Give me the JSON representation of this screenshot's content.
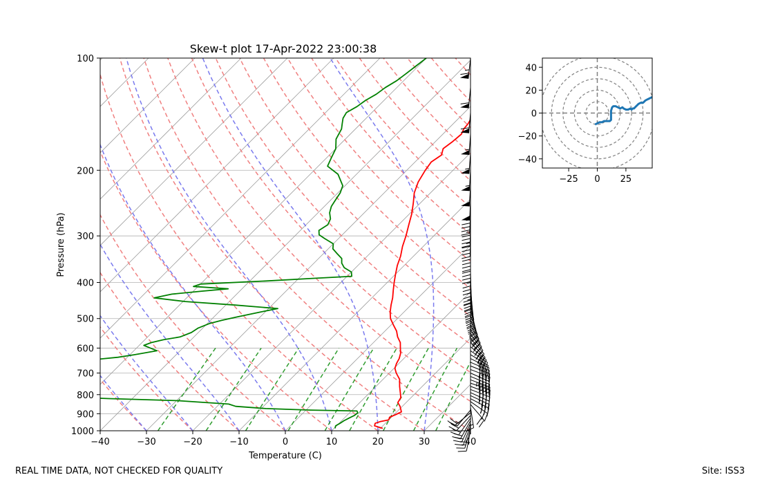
{
  "footer": {
    "left": "REAL TIME DATA, NOT CHECKED FOR QUALITY",
    "right": "Site: ISS3"
  },
  "chart_data": [
    {
      "type": "skew-t",
      "title": "Skew-t plot 17-Apr-2022 23:00:38",
      "xlabel": "Temperature (C)",
      "ylabel": "Pressure (hPa)",
      "xlim": [
        -40,
        40
      ],
      "ylim": [
        1000,
        100
      ],
      "y_scale": "log",
      "x_ticks": [
        -40,
        -30,
        -20,
        -10,
        0,
        10,
        20,
        30,
        40
      ],
      "x_tick_labels": [
        "−40",
        "−30",
        "−20",
        "−10",
        "0",
        "10",
        "20",
        "30",
        "40"
      ],
      "y_ticks": [
        100,
        200,
        300,
        400,
        500,
        600,
        700,
        800,
        900,
        1000
      ],
      "y_tick_labels": [
        "100",
        "200",
        "300",
        "400",
        "500",
        "600",
        "700",
        "800",
        "900",
        "1000"
      ],
      "grid": true,
      "series": [
        {
          "kind": "temperature",
          "color": "#ff0000",
          "points": [
            [
              20.5,
              985
            ],
            [
              18.2,
              970
            ],
            [
              17.8,
              955
            ],
            [
              18.5,
              945
            ],
            [
              20,
              935
            ],
            [
              19.6,
              920
            ],
            [
              20.4,
              905
            ],
            [
              21,
              890
            ],
            [
              19.5,
              860
            ],
            [
              18.2,
              840
            ],
            [
              17.8,
              815
            ],
            [
              16.6,
              790
            ],
            [
              15.1,
              760
            ],
            [
              13.6,
              728
            ],
            [
              11.5,
              700
            ],
            [
              10.2,
              680
            ],
            [
              9.5,
              660
            ],
            [
              9,
              640
            ],
            [
              8.2,
              620
            ],
            [
              7,
              600
            ],
            [
              5.8,
              580
            ],
            [
              4,
              560
            ],
            [
              2.5,
              540
            ],
            [
              0.5,
              520
            ],
            [
              -1.5,
              500
            ],
            [
              -3,
              480
            ],
            [
              -4.3,
              460
            ],
            [
              -5.5,
              440
            ],
            [
              -7,
              420
            ],
            [
              -8.5,
              400
            ],
            [
              -10,
              380
            ],
            [
              -11.5,
              360
            ],
            [
              -12.8,
              340
            ],
            [
              -14.5,
              320
            ],
            [
              -16,
              300
            ],
            [
              -17.8,
              280
            ],
            [
              -19.5,
              262
            ],
            [
              -21.5,
              245
            ],
            [
              -23.5,
              230
            ],
            [
              -25,
              215
            ],
            [
              -26,
              200
            ],
            [
              -26.5,
              190
            ],
            [
              -25.8,
              182
            ],
            [
              -26.8,
              175
            ],
            [
              -26.3,
              168
            ],
            [
              -26,
              160
            ],
            [
              -26.6,
              155
            ],
            [
              -26.8,
              150
            ],
            [
              -27.3,
              145
            ],
            [
              -28,
              140
            ],
            [
              -28.3,
              135
            ],
            [
              -28.6,
              130
            ],
            [
              -29.2,
              125
            ],
            [
              -29.5,
              120
            ],
            [
              -28.8,
              117
            ],
            [
              -29.8,
              114
            ],
            [
              -32.5,
              111
            ],
            [
              -33.6,
              108
            ],
            [
              -35,
              105
            ],
            [
              -36.5,
              102
            ],
            [
              -37,
              100
            ]
          ]
        },
        {
          "kind": "dewpoint",
          "color": "#008000",
          "points": [
            [
              10.2,
              985
            ],
            [
              9.8,
              970
            ],
            [
              10.2,
              955
            ],
            [
              10.5,
              940
            ],
            [
              11,
              925
            ],
            [
              11.6,
              910
            ],
            [
              11.8,
              895
            ],
            [
              11.2,
              885
            ],
            [
              1,
              880
            ],
            [
              -9,
              872
            ],
            [
              -16,
              860
            ],
            [
              -18,
              848
            ],
            [
              -30,
              830
            ],
            [
              -45,
              820
            ],
            [
              -51,
              815
            ],
            [
              -52,
              800
            ],
            [
              -52,
              785
            ],
            [
              -53,
              765
            ],
            [
              -54.5,
              745
            ],
            [
              -56.5,
              725
            ],
            [
              -58.5,
              700
            ],
            [
              -61,
              680
            ],
            [
              -64.5,
              665
            ],
            [
              -60,
              655
            ],
            [
              -57,
              645
            ],
            [
              -52,
              635
            ],
            [
              -49,
              625
            ],
            [
              -45,
              610
            ],
            [
              -47,
              600
            ],
            [
              -49,
              590
            ],
            [
              -48,
              580
            ],
            [
              -46,
              570
            ],
            [
              -43,
              560
            ],
            [
              -41.5,
              545
            ],
            [
              -41,
              530
            ],
            [
              -39.5,
              515
            ],
            [
              -37.5,
              505
            ],
            [
              -35,
              495
            ],
            [
              -31,
              480
            ],
            [
              -28,
              470
            ],
            [
              -38,
              460
            ],
            [
              -49.5,
              450
            ],
            [
              -57,
              440
            ],
            [
              -54,
              430
            ],
            [
              -48,
              422
            ],
            [
              -43,
              416
            ],
            [
              -51,
              410
            ],
            [
              -50,
              404
            ],
            [
              -36,
              396
            ],
            [
              -27,
              390
            ],
            [
              -19,
              385
            ],
            [
              -20,
              375
            ],
            [
              -22.5,
              365
            ],
            [
              -24,
              355
            ],
            [
              -25,
              345
            ],
            [
              -27,
              335
            ],
            [
              -29,
              325
            ],
            [
              -30,
              315
            ],
            [
              -33,
              305
            ],
            [
              -35,
              298
            ],
            [
              -36,
              290
            ],
            [
              -35.3,
              280
            ],
            [
              -36,
              270
            ],
            [
              -37.5,
              260
            ],
            [
              -38.5,
              250
            ],
            [
              -39,
              240
            ],
            [
              -39.5,
              230
            ],
            [
              -40.5,
              220
            ],
            [
              -44,
              205
            ],
            [
              -48,
              195
            ],
            [
              -49,
              185
            ],
            [
              -50,
              175
            ],
            [
              -52,
              165
            ],
            [
              -53,
              155
            ],
            [
              -54,
              150
            ],
            [
              -55,
              145
            ],
            [
              -55.5,
              140
            ],
            [
              -54.5,
              135
            ],
            [
              -54,
              130
            ],
            [
              -53,
              125
            ],
            [
              -52.5,
              120
            ],
            [
              -51.5,
              115
            ],
            [
              -51,
              110
            ],
            [
              -50.5,
              105
            ],
            [
              -50,
              100
            ]
          ]
        }
      ],
      "wind_barbs": [
        [
          2,
          10,
          1000
        ],
        [
          4,
          14,
          985
        ],
        [
          6,
          16,
          970
        ],
        [
          8,
          17,
          955
        ],
        [
          10,
          18,
          940
        ],
        [
          12,
          17,
          925
        ],
        [
          14,
          15,
          910
        ],
        [
          16,
          13,
          895
        ],
        [
          10,
          12,
          880
        ],
        [
          -2,
          13,
          865
        ],
        [
          -12,
          14,
          850
        ],
        [
          -20,
          14,
          835
        ],
        [
          -25,
          13,
          820
        ],
        [
          -30,
          14,
          805
        ],
        [
          -33,
          15,
          790
        ],
        [
          -36,
          14,
          775
        ],
        [
          -38,
          14,
          760
        ],
        [
          -40,
          14,
          745
        ],
        [
          -40,
          15,
          730
        ],
        [
          -39,
          16,
          715
        ],
        [
          -38,
          17,
          700
        ],
        [
          -37,
          14,
          685
        ],
        [
          -35,
          14,
          670
        ],
        [
          -32,
          14,
          655
        ],
        [
          -30,
          15,
          640
        ],
        [
          -28,
          17,
          625
        ],
        [
          -26,
          18,
          610
        ],
        [
          -24,
          20,
          595
        ],
        [
          -22,
          22,
          580
        ],
        [
          -20,
          23,
          565
        ],
        [
          -18,
          24,
          550
        ],
        [
          -16,
          25,
          535
        ],
        [
          -14,
          26,
          520
        ],
        [
          -12,
          27,
          505
        ],
        [
          -10,
          28,
          490
        ],
        [
          -8,
          29,
          475
        ],
        [
          -6,
          30,
          460
        ],
        [
          -5,
          31,
          445
        ],
        [
          -4,
          32,
          430
        ],
        [
          -3,
          33,
          415
        ],
        [
          -2,
          34,
          400
        ],
        [
          -1,
          36,
          375
        ],
        [
          0,
          38,
          350
        ],
        [
          0,
          41,
          325
        ],
        [
          1,
          43,
          300
        ],
        [
          1,
          45,
          280
        ],
        [
          2,
          47,
          260
        ],
        [
          2,
          49,
          240
        ],
        [
          3,
          51,
          220
        ],
        [
          3,
          53,
          200
        ],
        [
          4,
          55,
          180
        ],
        [
          4,
          57,
          160
        ],
        [
          5,
          59,
          140
        ],
        [
          6,
          62,
          120
        ],
        [
          7,
          65,
          100
        ]
      ]
    },
    {
      "type": "line",
      "subtype": "hodograph",
      "xlim": [
        -48,
        48
      ],
      "ylim": [
        -48,
        48
      ],
      "x_ticks": [
        -25,
        0,
        25
      ],
      "x_tick_labels": [
        "−25",
        "0",
        "25"
      ],
      "y_ticks": [
        -40,
        -20,
        0,
        20,
        40
      ],
      "y_tick_labels": [
        "−40",
        "−20",
        "0",
        "20",
        "40"
      ],
      "rings": [
        10,
        20,
        30,
        40,
        50
      ],
      "color": "#1f77b4",
      "u": [
        -2,
        0,
        2,
        4,
        6,
        8,
        9,
        10,
        11,
        12,
        12,
        12,
        13,
        14,
        16,
        18,
        20,
        22,
        23,
        25,
        27,
        29,
        30,
        31,
        32,
        33,
        34,
        35,
        36,
        38,
        40,
        42,
        44,
        46,
        48,
        50
      ],
      "v": [
        -10,
        -9,
        -8,
        -8,
        -7,
        -7,
        -7,
        -7,
        -7,
        -6,
        -2,
        2,
        5,
        6,
        6,
        5,
        4,
        5,
        4,
        3,
        3,
        4,
        3,
        4,
        4,
        5,
        6,
        7,
        8,
        9,
        9,
        11,
        12,
        13,
        14,
        15
      ]
    }
  ]
}
